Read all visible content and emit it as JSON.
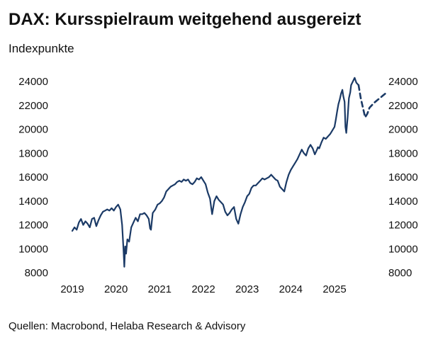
{
  "title": "DAX: Kursspielraum weitgehend ausgereizt",
  "subtitle": "Indexpunkte",
  "source": "Quellen: Macrobond, Helaba Research & Advisory",
  "colors": {
    "series": "#1b3a66"
  },
  "chart_data": {
    "type": "line",
    "title": "DAX: Kursspielraum weitgehend ausgereizt",
    "ylabel": "Indexpunkte",
    "xlabel": "",
    "ylim": [
      8000,
      24000
    ],
    "xlim": [
      2018.85,
      2025.85
    ],
    "y_ticks": [
      8000,
      10000,
      12000,
      14000,
      16000,
      18000,
      20000,
      22000,
      24000
    ],
    "y_tick_labels": [
      "8000",
      "10000",
      "12000",
      "14000",
      "16000",
      "18000",
      "20000",
      "22000",
      "24000"
    ],
    "x_ticks": [
      2019,
      2020,
      2021,
      2022,
      2023,
      2024,
      2025
    ],
    "x_tick_labels": [
      "2019",
      "2020",
      "2021",
      "2022",
      "2023",
      "2024",
      "2025"
    ],
    "y_axis_both_sides": true,
    "grid": false,
    "legend": "none",
    "series": [
      {
        "style": "solid",
        "x": [
          2019.0,
          2019.05,
          2019.1,
          2019.15,
          2019.2,
          2019.25,
          2019.3,
          2019.35,
          2019.4,
          2019.45,
          2019.5,
          2019.55,
          2019.6,
          2019.65,
          2019.7,
          2019.75,
          2019.8,
          2019.85,
          2019.9,
          2019.95,
          2020.0,
          2020.05,
          2020.1,
          2020.14,
          2020.17,
          2020.19,
          2020.21,
          2020.23,
          2020.26,
          2020.3,
          2020.35,
          2020.4,
          2020.45,
          2020.5,
          2020.55,
          2020.6,
          2020.65,
          2020.7,
          2020.75,
          2020.78,
          2020.8,
          2020.84,
          2020.9,
          2020.95,
          2021.0,
          2021.05,
          2021.1,
          2021.15,
          2021.2,
          2021.25,
          2021.3,
          2021.35,
          2021.4,
          2021.45,
          2021.5,
          2021.55,
          2021.6,
          2021.65,
          2021.7,
          2021.75,
          2021.8,
          2021.85,
          2021.9,
          2021.95,
          2022.0,
          2022.05,
          2022.1,
          2022.15,
          2022.18,
          2022.2,
          2022.25,
          2022.3,
          2022.35,
          2022.4,
          2022.45,
          2022.5,
          2022.55,
          2022.6,
          2022.65,
          2022.7,
          2022.75,
          2022.8,
          2022.85,
          2022.9,
          2022.95,
          2023.0,
          2023.05,
          2023.1,
          2023.15,
          2023.2,
          2023.25,
          2023.3,
          2023.35,
          2023.4,
          2023.45,
          2023.5,
          2023.55,
          2023.6,
          2023.65,
          2023.7,
          2023.75,
          2023.8,
          2023.85,
          2023.9,
          2023.95,
          2024.0,
          2024.05,
          2024.1,
          2024.15,
          2024.2,
          2024.25,
          2024.3,
          2024.35,
          2024.4,
          2024.45,
          2024.5,
          2024.55,
          2024.6,
          2024.62,
          2024.65,
          2024.7,
          2024.75,
          2024.8,
          2024.85,
          2024.9,
          2024.95,
          2025.0,
          2025.03,
          2025.06,
          2025.09,
          2025.12,
          2025.15,
          2025.18,
          2025.2,
          2025.23,
          2025.25,
          2025.27,
          2025.3,
          2025.33,
          2025.36,
          2025.38,
          2025.42,
          2025.46,
          2025.5,
          2025.55
        ],
        "y": [
          11500,
          11800,
          11600,
          12200,
          12500,
          12000,
          12300,
          12100,
          11800,
          12500,
          12600,
          11900,
          12400,
          12800,
          13100,
          13200,
          13300,
          13200,
          13400,
          13200,
          13500,
          13700,
          13300,
          12000,
          10000,
          8500,
          10200,
          9600,
          10800,
          10600,
          11800,
          12200,
          12600,
          12300,
          12900,
          12900,
          13000,
          12800,
          12500,
          11700,
          11600,
          13000,
          13300,
          13700,
          13800,
          14000,
          14300,
          14800,
          15000,
          15200,
          15300,
          15400,
          15600,
          15700,
          15600,
          15800,
          15700,
          15800,
          15500,
          15400,
          15600,
          15900,
          15800,
          16000,
          15700,
          15400,
          14700,
          14200,
          13400,
          12900,
          14000,
          14400,
          14100,
          13900,
          13700,
          13100,
          12800,
          13000,
          13300,
          13500,
          12500,
          12100,
          12900,
          13500,
          13900,
          14400,
          14600,
          15100,
          15300,
          15300,
          15500,
          15700,
          15900,
          15800,
          15900,
          16000,
          16200,
          16000,
          15800,
          15700,
          15200,
          15000,
          14800,
          15600,
          16200,
          16600,
          16900,
          17200,
          17500,
          17900,
          18300,
          18000,
          17800,
          18400,
          18700,
          18400,
          17900,
          18300,
          18500,
          18400,
          18900,
          19300,
          19200,
          19400,
          19600,
          19900,
          20200,
          20800,
          21500,
          22100,
          22500,
          23000,
          23300,
          22800,
          22300,
          20200,
          19700,
          21000,
          22600,
          23100,
          23700,
          24000,
          24300,
          23900,
          23700
        ]
      },
      {
        "style": "dashed",
        "x": [
          2025.55,
          2025.6,
          2025.65,
          2025.7,
          2025.75,
          2025.8,
          2025.85,
          2025.9,
          2026.0,
          2026.1,
          2026.2
        ],
        "y": [
          23700,
          22600,
          21800,
          21000,
          21300,
          21800,
          22000,
          22200,
          22500,
          22800,
          23100
        ]
      }
    ]
  }
}
